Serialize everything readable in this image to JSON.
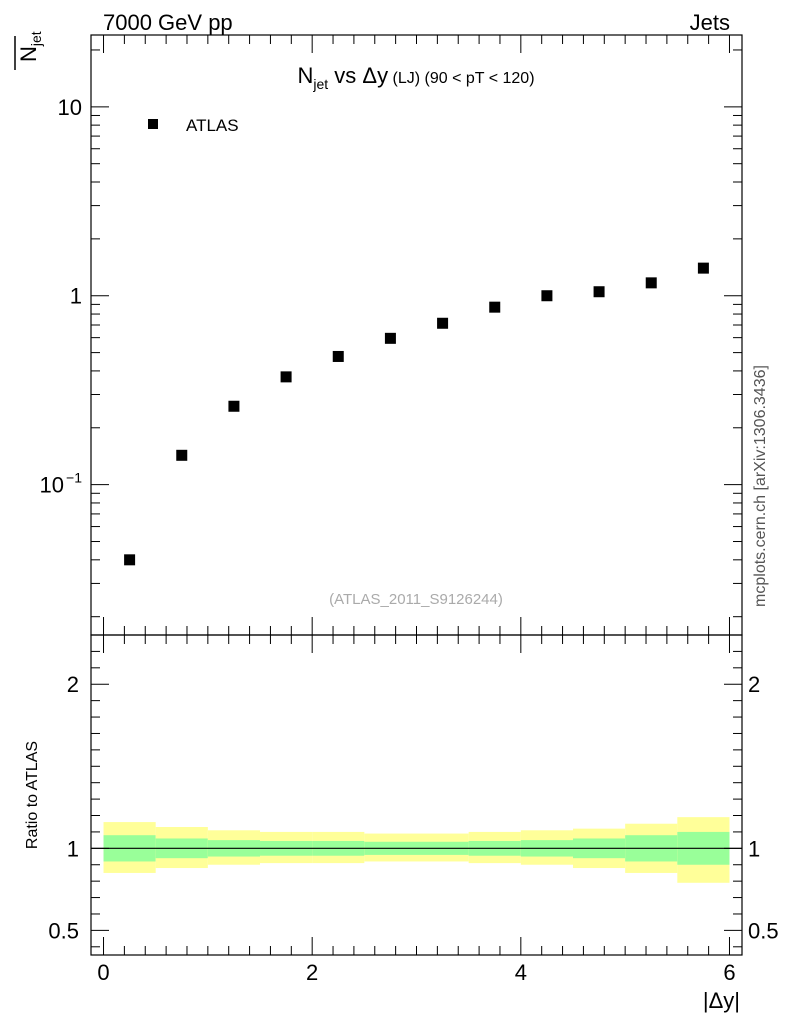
{
  "header": {
    "left": "7000 GeV pp",
    "right": "Jets"
  },
  "side_label": "mcplots.cern.ch [arXiv:1306.3436]",
  "chart_data": [
    {
      "type": "scatter",
      "title": {
        "main": "N",
        "sub": "jet",
        "vs": " vs ",
        "var": "Δy",
        "tag": " (LJ)",
        "cut": " (90 < pT < 120)"
      },
      "ylabel": {
        "main": "N",
        "sub": "jet"
      },
      "yscale": "log",
      "ylim": [
        0.016,
        24
      ],
      "xlim": [
        -0.12,
        6.12
      ],
      "y_ticks": [
        {
          "value": 10,
          "label": "10"
        },
        {
          "value": 1,
          "label": "1"
        },
        {
          "value": 0.1,
          "label_base": "10",
          "label_exp": "−1"
        }
      ],
      "legend": {
        "position": "top-left",
        "entries": [
          "ATLAS"
        ]
      },
      "watermark": "(ATLAS_2011_S9126244)",
      "series": [
        {
          "name": "ATLAS",
          "marker": "square",
          "color": "#000000",
          "x": [
            0.25,
            0.75,
            1.25,
            1.75,
            2.25,
            2.75,
            3.25,
            3.75,
            4.25,
            4.75,
            5.25,
            5.75
          ],
          "y": [
            0.04,
            0.143,
            0.26,
            0.372,
            0.477,
            0.595,
            0.715,
            0.87,
            1.0,
            1.05,
            1.17,
            1.4
          ]
        }
      ]
    },
    {
      "type": "area",
      "ylabel": "Ratio to ATLAS",
      "xlabel": "|Δy|",
      "yscale": "linear",
      "ylim": [
        0.35,
        2.3
      ],
      "xlim": [
        -0.12,
        6.12
      ],
      "x_ticks": [
        "0",
        "2",
        "4",
        "6"
      ],
      "x_tick_values": [
        0,
        2,
        4,
        6
      ],
      "y_ticks": [
        "0.5",
        "1",
        "2"
      ],
      "y_tick_values": [
        0.5,
        1,
        2
      ],
      "reference_line": 1,
      "colors": {
        "outer_band": "#ffff99",
        "inner_band": "#99ff99"
      },
      "bins": [
        {
          "x0": 0.0,
          "x1": 0.5,
          "outer": [
            0.85,
            1.16
          ],
          "inner": [
            0.92,
            1.08
          ]
        },
        {
          "x0": 0.5,
          "x1": 1.0,
          "outer": [
            0.88,
            1.13
          ],
          "inner": [
            0.94,
            1.06
          ]
        },
        {
          "x0": 1.0,
          "x1": 1.5,
          "outer": [
            0.9,
            1.11
          ],
          "inner": [
            0.95,
            1.05
          ]
        },
        {
          "x0": 1.5,
          "x1": 2.0,
          "outer": [
            0.91,
            1.1
          ],
          "inner": [
            0.955,
            1.045
          ]
        },
        {
          "x0": 2.0,
          "x1": 2.5,
          "outer": [
            0.91,
            1.1
          ],
          "inner": [
            0.955,
            1.045
          ]
        },
        {
          "x0": 2.5,
          "x1": 3.0,
          "outer": [
            0.92,
            1.09
          ],
          "inner": [
            0.96,
            1.04
          ]
        },
        {
          "x0": 3.0,
          "x1": 3.5,
          "outer": [
            0.92,
            1.09
          ],
          "inner": [
            0.96,
            1.04
          ]
        },
        {
          "x0": 3.5,
          "x1": 4.0,
          "outer": [
            0.91,
            1.1
          ],
          "inner": [
            0.955,
            1.045
          ]
        },
        {
          "x0": 4.0,
          "x1": 4.5,
          "outer": [
            0.9,
            1.11
          ],
          "inner": [
            0.95,
            1.05
          ]
        },
        {
          "x0": 4.5,
          "x1": 5.0,
          "outer": [
            0.88,
            1.12
          ],
          "inner": [
            0.94,
            1.06
          ]
        },
        {
          "x0": 5.0,
          "x1": 5.5,
          "outer": [
            0.85,
            1.15
          ],
          "inner": [
            0.92,
            1.08
          ]
        },
        {
          "x0": 5.5,
          "x1": 6.0,
          "outer": [
            0.79,
            1.19
          ],
          "inner": [
            0.9,
            1.1
          ]
        }
      ]
    }
  ]
}
